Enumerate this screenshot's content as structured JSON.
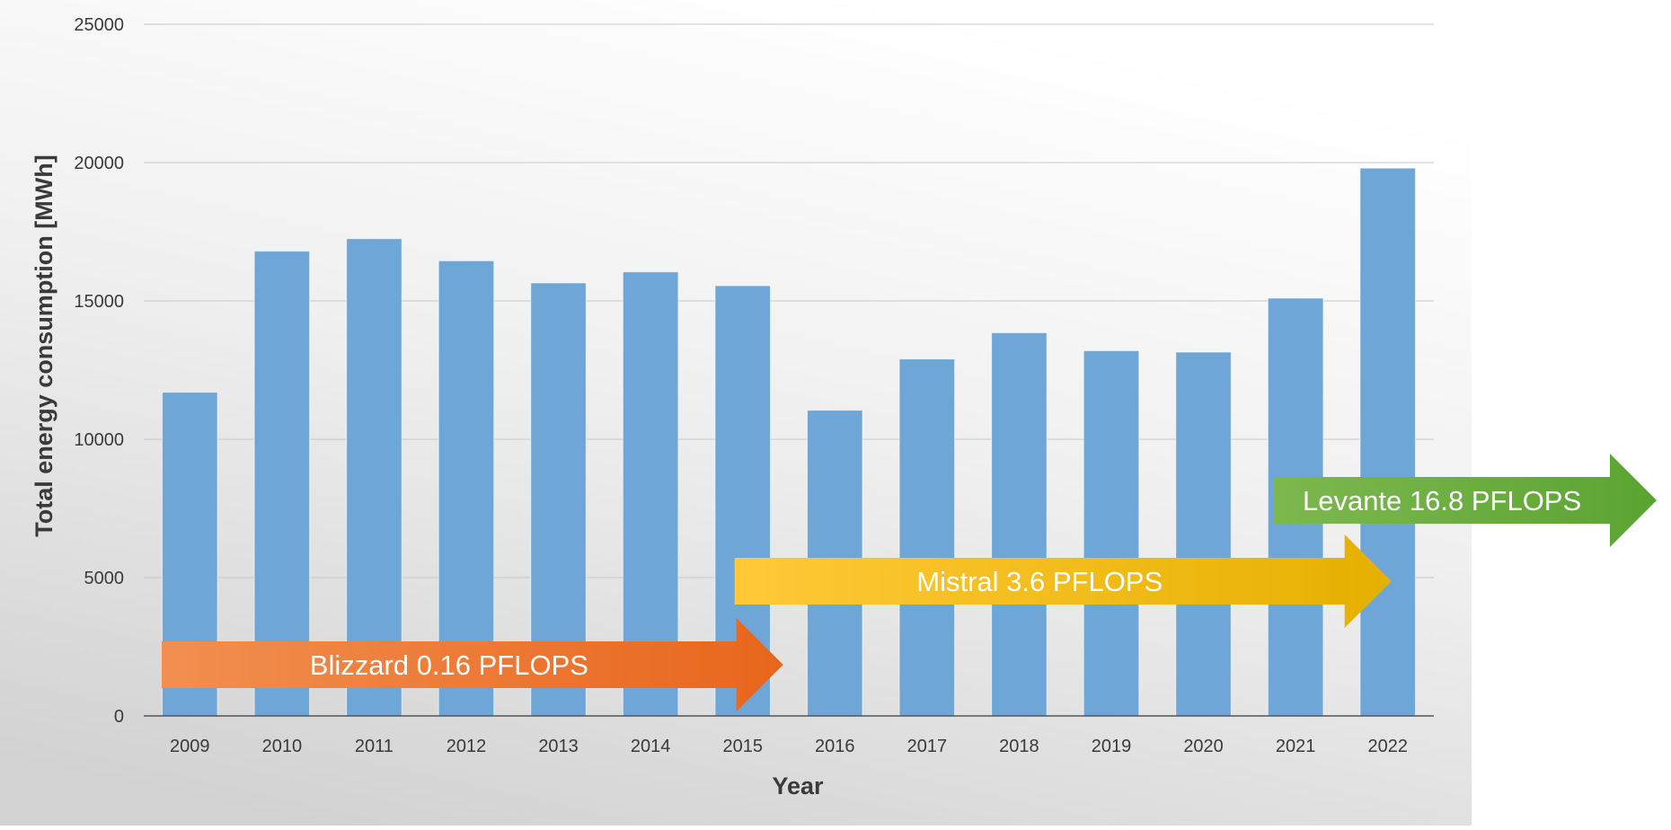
{
  "chart_data": {
    "type": "bar",
    "xlabel": "Year",
    "ylabel": "Total energy consumption [MWh]",
    "ylim": [
      0,
      25000
    ],
    "yticks": [
      0,
      5000,
      10000,
      15000,
      20000,
      25000
    ],
    "grid": true,
    "categories": [
      "2009",
      "2010",
      "2011",
      "2012",
      "2013",
      "2014",
      "2015",
      "2016",
      "2017",
      "2018",
      "2019",
      "2020",
      "2021",
      "2022"
    ],
    "values": [
      11700,
      16800,
      17250,
      16450,
      15650,
      16050,
      15550,
      11050,
      12900,
      13850,
      13200,
      13150,
      15100,
      19800
    ],
    "bar_color": "#6fa6d8",
    "annotations": [
      {
        "label": "Blizzard 0.16 PFLOPS",
        "start": "2009",
        "end": "2015",
        "color_from": "#f28f50",
        "color_to": "#e8661c"
      },
      {
        "label": "Mistral 3.6 PFLOPS",
        "start": "2015",
        "end": "2022",
        "color_from": "#ffc938",
        "color_to": "#e6b000"
      },
      {
        "label": "Levante 16.8 PFLOPS",
        "start": "2021",
        "end": "2022",
        "color_from": "#7db84f",
        "color_to": "#5aa432"
      }
    ]
  }
}
